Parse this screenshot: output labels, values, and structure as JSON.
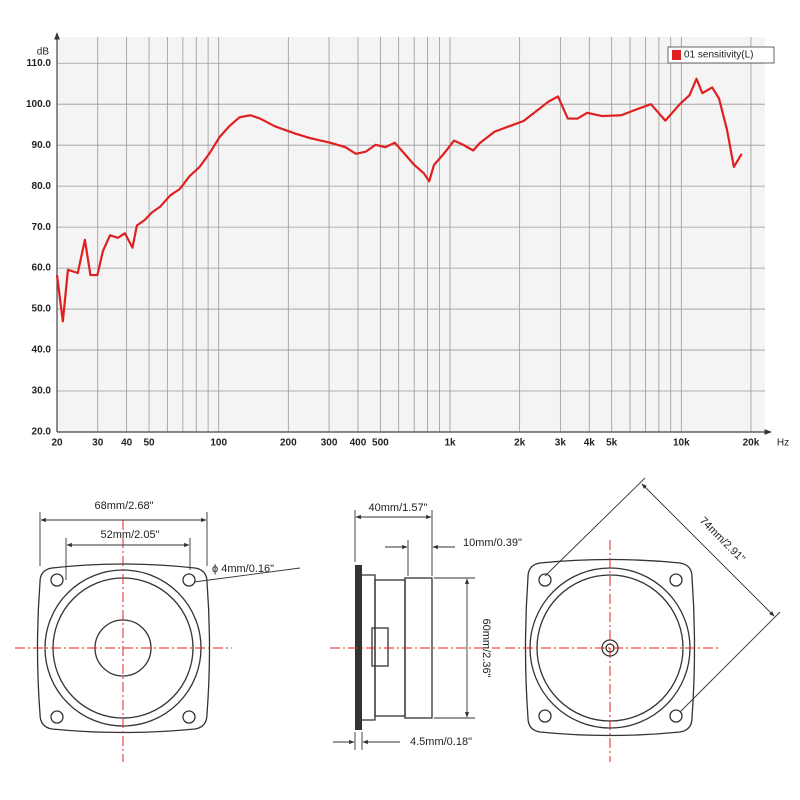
{
  "chart_data": {
    "type": "line",
    "xscale": "log",
    "grid": true,
    "legend": "top-right",
    "x_label": "Hz",
    "y_label": "dB",
    "xlim": [
      20,
      23000
    ],
    "ylim": [
      20,
      116.4
    ],
    "xticks": [
      20,
      30,
      40,
      50,
      100,
      200,
      300,
      400,
      500,
      {
        "value": 1000,
        "label": "1k"
      },
      {
        "value": 2000,
        "label": "2k"
      },
      {
        "value": 3000,
        "label": "3k"
      },
      {
        "value": 4000,
        "label": "4k"
      },
      {
        "value": 5000,
        "label": "5k"
      },
      {
        "value": 10000,
        "label": "10k"
      },
      {
        "value": 20000,
        "label": "20k"
      }
    ],
    "x_minor_grid": [
      60,
      70,
      80,
      90,
      600,
      700,
      800,
      900,
      6000,
      7000,
      8000,
      9000
    ],
    "yticks": [
      {
        "value": 20,
        "label": "20.0"
      },
      {
        "value": 30,
        "label": "30.0"
      },
      {
        "value": 40,
        "label": "40.0"
      },
      {
        "value": 50,
        "label": "50.0"
      },
      {
        "value": 60,
        "label": "60.0"
      },
      {
        "value": 70,
        "label": "70.0"
      },
      {
        "value": 80,
        "label": "80.0"
      },
      {
        "value": 90,
        "label": "90.0"
      },
      {
        "value": 100,
        "label": "100.0"
      },
      {
        "value": 110,
        "label": "110.0"
      }
    ],
    "x": [
      20,
      21.2,
      22.3,
      24.6,
      26.4,
      27.9,
      29.9,
      31.6,
      33.9,
      36.7,
      39.3,
      42.4,
      44.3,
      47.8,
      51.5,
      55.9,
      61.6,
      67.9,
      75,
      82.7,
      91,
      101,
      111,
      123,
      137,
      151,
      175,
      215,
      249,
      303,
      353,
      392,
      432,
      477,
      524,
      577,
      636,
      700,
      772,
      813,
      853,
      940,
      1040,
      1140,
      1260,
      1350,
      1560,
      1800,
      2080,
      2410,
      2660,
      2930,
      3230,
      3560,
      3920,
      4540,
      5500,
      6380,
      7390,
      8530,
      9850,
      10850,
      11630,
      12330,
      13600,
      14550,
      15750,
      16870,
      18240
    ],
    "series": [
      {
        "name": "01 sensitivity(L)",
        "color": "#e02020",
        "values": [
          58.3,
          47,
          59.6,
          58.8,
          66.9,
          58.3,
          58.3,
          64.2,
          68,
          67.4,
          68.5,
          65,
          70.4,
          71.7,
          73.6,
          75,
          77.7,
          79.3,
          82.5,
          84.7,
          87.9,
          92,
          94.6,
          96.8,
          97.3,
          96.5,
          94.6,
          92.8,
          91.7,
          90.6,
          89.5,
          87.9,
          88.4,
          90.1,
          89.5,
          90.6,
          87.9,
          85.2,
          83.1,
          81.2,
          85.2,
          87.9,
          91.1,
          90.1,
          88.7,
          90.6,
          93.3,
          94.6,
          95.9,
          98.7,
          100.6,
          101.9,
          96.5,
          96.5,
          97.9,
          97.1,
          97.3,
          98.7,
          100,
          96,
          100,
          102.2,
          106.2,
          102.7,
          104.1,
          101.4,
          93.8,
          84.7,
          87.9
        ]
      }
    ]
  },
  "diagram": {
    "front_view": {
      "width": "68mm/2.68\"",
      "cone": "52mm/2.05\"",
      "hole": "ϕ 4mm/0.16\""
    },
    "side_view": {
      "depth": "40mm/1.57\"",
      "magnet": "10mm/0.39\"",
      "height": "60mm/2.36\"",
      "flange": "4.5mm/0.18\""
    },
    "back_view": {
      "diagonal": "74mm/2.91\""
    }
  }
}
